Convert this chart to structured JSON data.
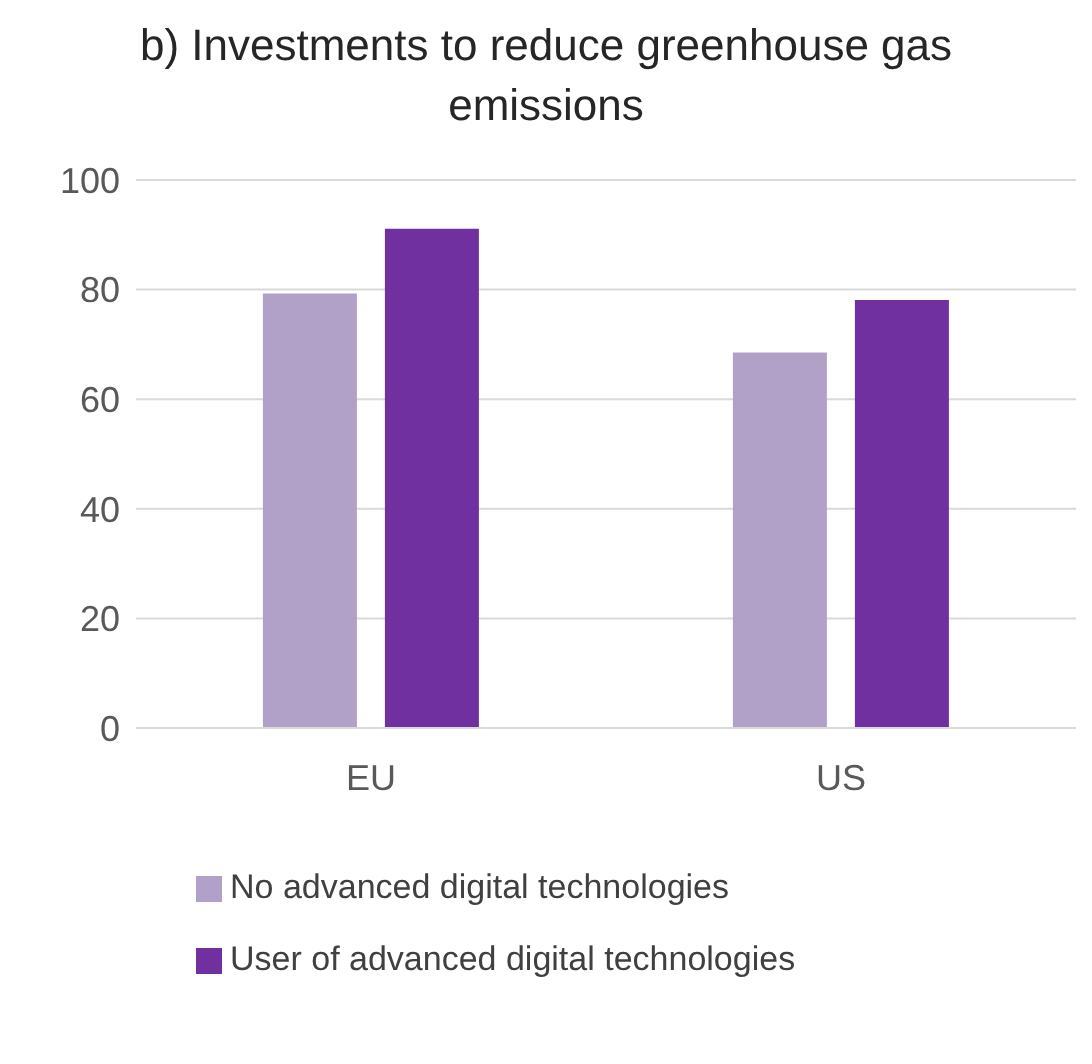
{
  "chart_data": {
    "type": "bar",
    "title": "b) Investments to reduce greenhouse gas emissions",
    "categories": [
      "EU",
      "US"
    ],
    "series": [
      {
        "name": "No advanced digital technologies",
        "color": "#b1a0c7",
        "values": [
          79.3,
          68.5
        ]
      },
      {
        "name": "User of advanced digital technologies",
        "color": "#7030a0",
        "values": [
          91.1,
          78.1
        ]
      }
    ],
    "ylim": [
      0,
      100
    ],
    "yticks": [
      0,
      20,
      40,
      60,
      80,
      100
    ],
    "grid": "y",
    "legend": "bottom"
  }
}
